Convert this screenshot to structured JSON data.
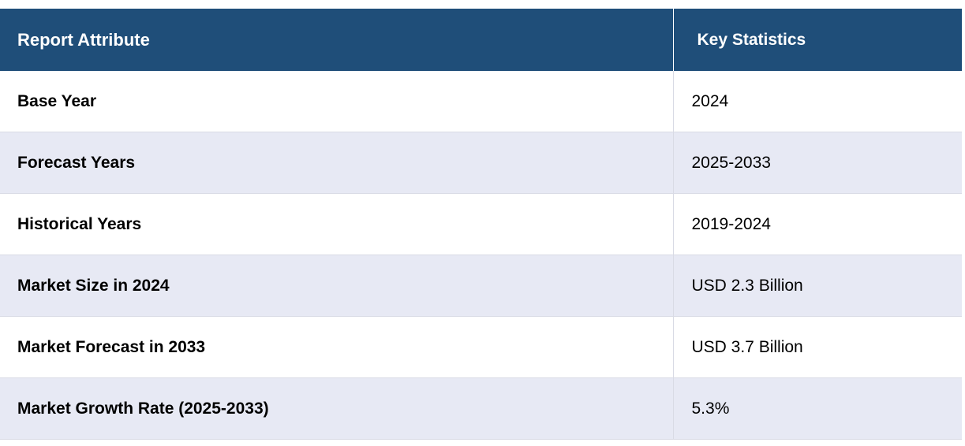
{
  "table": {
    "headers": {
      "attribute": "Report Attribute",
      "statistics": "Key Statistics"
    },
    "rows": [
      {
        "attribute": "Base Year",
        "value": "2024"
      },
      {
        "attribute": "Forecast Years",
        "value": "2025-2033"
      },
      {
        "attribute": "Historical Years",
        "value": "2019-2024"
      },
      {
        "attribute": "Market Size in 2024",
        "value": "USD 2.3 Billion"
      },
      {
        "attribute": "Market Forecast in 2033",
        "value": "USD 3.7 Billion"
      },
      {
        "attribute": "Market Growth Rate (2025-2033)",
        "value": "5.3%"
      }
    ],
    "colors": {
      "header_bg": "#1f4e79",
      "header_text": "#ffffff",
      "row_alt_bg": "#e7e9f4",
      "row_bg": "#ffffff"
    }
  }
}
